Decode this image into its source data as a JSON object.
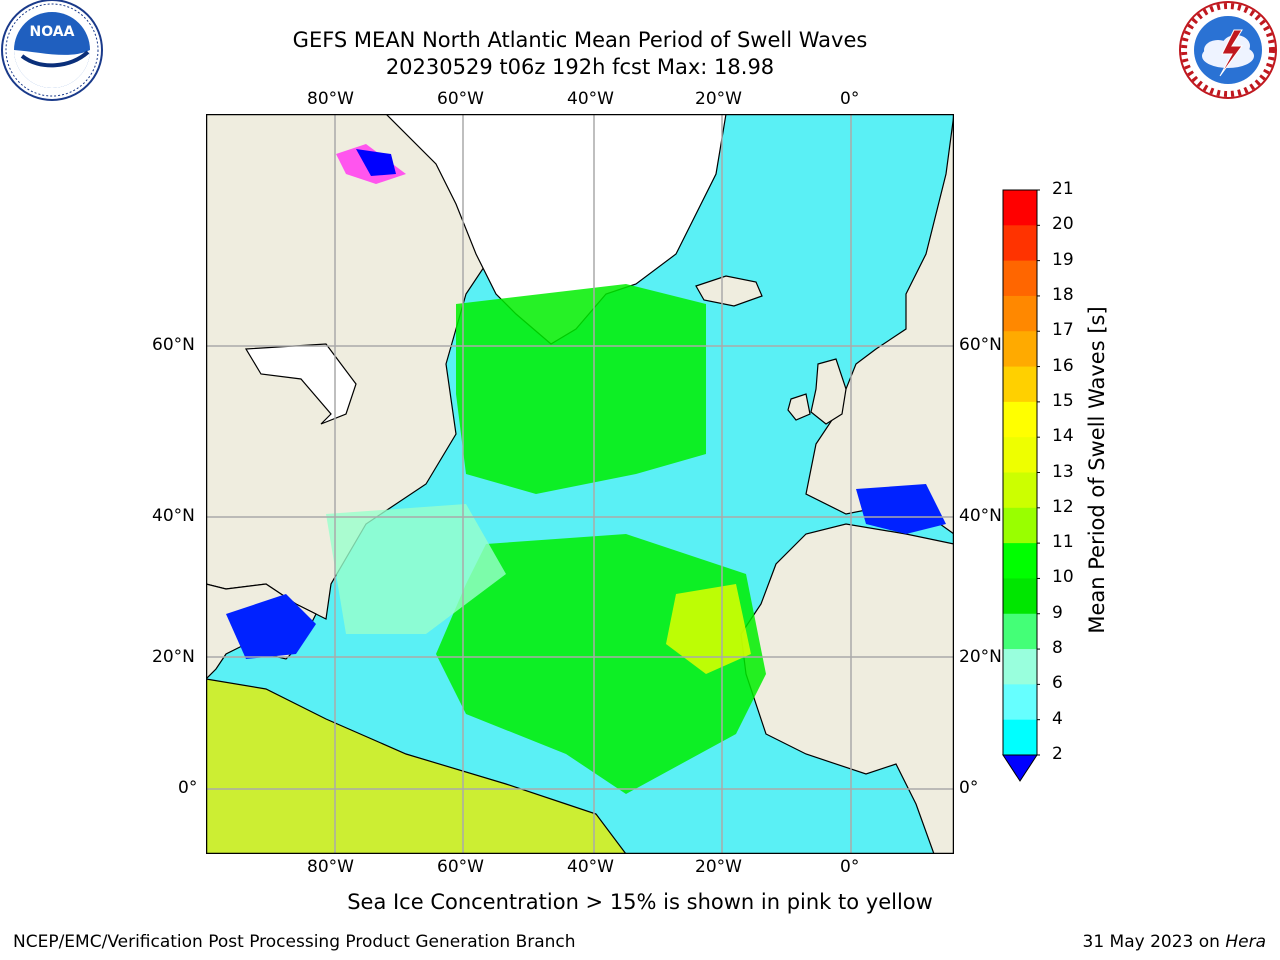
{
  "title": {
    "line1": "GEFS MEAN North Atlantic Mean Period of Swell Waves",
    "line2": "20230529 t06z 192h fcst   Max: 18.98"
  },
  "logos": {
    "left": "noaa-logo",
    "right": "nws-logo"
  },
  "axes": {
    "lon_labels": [
      "80°W",
      "60°W",
      "40°W",
      "20°W",
      "0°"
    ],
    "lat_labels": [
      "60°N",
      "40°N",
      "20°N",
      "0°"
    ]
  },
  "colorbar": {
    "label": "Mean Period of Swell Waves [s]",
    "ticks": [
      "21",
      "20",
      "19",
      "18",
      "17",
      "16",
      "15",
      "14",
      "13",
      "12",
      "11",
      "10",
      "9",
      "8",
      "6",
      "4",
      "2"
    ],
    "colors": [
      "#ff0000",
      "#ff3300",
      "#ff6600",
      "#ff8800",
      "#ffaa00",
      "#ffd000",
      "#ffff00",
      "#eeff00",
      "#ccff00",
      "#99ff00",
      "#00ff00",
      "#00e600",
      "#44ff77",
      "#99ffdd",
      "#66ffff",
      "#00ffff",
      "#0077ff",
      "#0000ff"
    ],
    "under_color": "#0000ff"
  },
  "caption": "Sea Ice Concentration > 15% is shown in pink to yellow",
  "footer": {
    "left": "NCEP/EMC/Verification Post Processing Product Generation Branch",
    "right_date": "31 May 2023 on ",
    "right_host": "Hera"
  }
}
